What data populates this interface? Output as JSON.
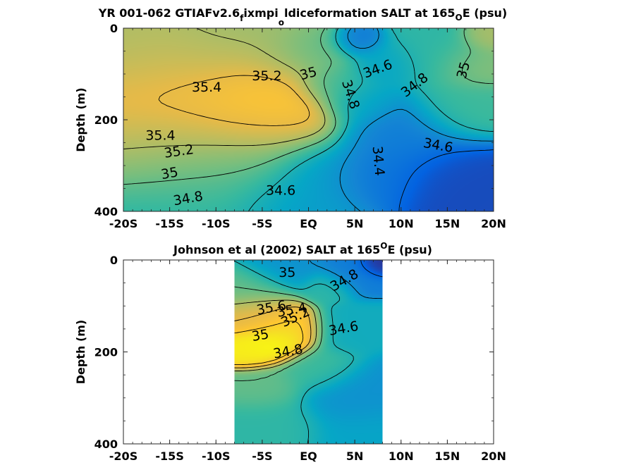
{
  "chart_data": [
    {
      "type": "heatmap",
      "title_parts": [
        "YR 001-062 GTIAFv2.6",
        "f",
        "ixmpi",
        "o",
        "ldiceformation SALT at 165",
        "O",
        "E (psu)"
      ],
      "ylabel": "Depth (m)",
      "xlabel": "",
      "x_ticks": [
        "-20S",
        "-15S",
        "-10S",
        "-5S",
        "EQ",
        "5N",
        "10N",
        "15N",
        "20N"
      ],
      "x_tick_values": [
        -20,
        -15,
        -10,
        -5,
        0,
        5,
        10,
        15,
        20
      ],
      "y_ticks": [
        "0",
        "200",
        "400"
      ],
      "y_tick_values": [
        0,
        200,
        400
      ],
      "xlim": [
        -20,
        20
      ],
      "ylim": [
        0,
        400
      ],
      "y_reversed": true,
      "colormap": "parula",
      "clim": [
        34.2,
        35.9
      ],
      "field_anchors": [
        {
          "x": -12,
          "y": 170,
          "v": 35.55,
          "s": 9
        },
        {
          "x": -6,
          "y": 165,
          "v": 35.6,
          "s": 6
        },
        {
          "x": -16,
          "y": 90,
          "v": 35.35,
          "s": 7
        },
        {
          "x": -16,
          "y": 260,
          "v": 35.2,
          "s": 7
        },
        {
          "x": -19,
          "y": 40,
          "v": 35.15,
          "s": 6
        },
        {
          "x": -8,
          "y": 300,
          "v": 35.0,
          "s": 8
        },
        {
          "x": -13,
          "y": 370,
          "v": 34.8,
          "s": 8
        },
        {
          "x": -10,
          "y": 40,
          "v": 35.1,
          "s": 6
        },
        {
          "x": -2,
          "y": 60,
          "v": 35.1,
          "s": 4
        },
        {
          "x": 1,
          "y": 50,
          "v": 34.95,
          "s": 3
        },
        {
          "x": 2.5,
          "y": 120,
          "v": 34.85,
          "s": 3
        },
        {
          "x": 5,
          "y": 30,
          "v": 34.45,
          "s": 2
        },
        {
          "x": 5.5,
          "y": 160,
          "v": 34.7,
          "s": 3
        },
        {
          "x": 8,
          "y": 80,
          "v": 34.7,
          "s": 3
        },
        {
          "x": 1,
          "y": 320,
          "v": 34.6,
          "s": 4
        },
        {
          "x": 7,
          "y": 320,
          "v": 34.45,
          "s": 4
        },
        {
          "x": 10,
          "y": 240,
          "v": 34.5,
          "s": 5
        },
        {
          "x": 16,
          "y": 330,
          "v": 34.3,
          "s": 5
        },
        {
          "x": 14,
          "y": 60,
          "v": 34.85,
          "s": 4
        },
        {
          "x": 18,
          "y": 80,
          "v": 35.1,
          "s": 3
        },
        {
          "x": 19.5,
          "y": 20,
          "v": 35.2,
          "s": 2
        },
        {
          "x": 17,
          "y": 180,
          "v": 34.9,
          "s": 4
        },
        {
          "x": -2,
          "y": 380,
          "v": 34.6,
          "s": 5
        }
      ],
      "contour_levels": [
        34.4,
        34.6,
        34.8,
        35,
        35.2,
        35.4
      ],
      "contour_labels": [
        {
          "text": "35.2",
          "x": -4.5,
          "y": 105,
          "angle": 0
        },
        {
          "text": "35",
          "x": 0,
          "y": 100,
          "angle": -15
        },
        {
          "text": "35.4",
          "x": -11,
          "y": 130,
          "angle": 0
        },
        {
          "text": "34.6",
          "x": 7.5,
          "y": 90,
          "angle": -20
        },
        {
          "text": "34.8",
          "x": 11.5,
          "y": 125,
          "angle": -38
        },
        {
          "text": "35",
          "x": 16.8,
          "y": 92,
          "angle": -75
        },
        {
          "text": "34.8",
          "x": 4.5,
          "y": 145,
          "angle": 72
        },
        {
          "text": "35.4",
          "x": -16,
          "y": 235,
          "angle": 0
        },
        {
          "text": "34.6",
          "x": 14,
          "y": 257,
          "angle": 10
        },
        {
          "text": "35.2",
          "x": -14,
          "y": 270,
          "angle": -8
        },
        {
          "text": "34.4",
          "x": 7.5,
          "y": 290,
          "angle": 85
        },
        {
          "text": "35",
          "x": -15,
          "y": 318,
          "angle": -10
        },
        {
          "text": "34.6",
          "x": -3,
          "y": 355,
          "angle": 0
        },
        {
          "text": "34.8",
          "x": -13,
          "y": 373,
          "angle": -10
        }
      ]
    },
    {
      "type": "heatmap",
      "title_parts": [
        "Johnson et al (2002) SALT at 165",
        "O",
        "E (psu)"
      ],
      "ylabel": "Depth (m)",
      "xlabel": "",
      "x_ticks": [
        "-20S",
        "-15S",
        "-10S",
        "-5S",
        "EQ",
        "5N",
        "10N",
        "15N",
        "20N"
      ],
      "x_tick_values": [
        -20,
        -15,
        -10,
        -5,
        0,
        5,
        10,
        15,
        20
      ],
      "y_ticks": [
        "0",
        "200",
        "400"
      ],
      "y_tick_values": [
        0,
        200,
        400
      ],
      "xlim": [
        -20,
        20
      ],
      "ylim": [
        0,
        400
      ],
      "y_reversed": true,
      "data_xrange": [
        -8,
        8
      ],
      "colormap": "parula",
      "clim": [
        34.2,
        35.9
      ],
      "field_anchors": [
        {
          "x": -4,
          "y": 180,
          "v": 35.9,
          "s": 2.5
        },
        {
          "x": -6.5,
          "y": 200,
          "v": 35.8,
          "s": 2
        },
        {
          "x": -2,
          "y": 150,
          "v": 35.7,
          "s": 2.5
        },
        {
          "x": -5,
          "y": 120,
          "v": 35.4,
          "s": 3
        },
        {
          "x": -6,
          "y": 60,
          "v": 35.0,
          "s": 3
        },
        {
          "x": -3,
          "y": 20,
          "v": 34.6,
          "s": 3
        },
        {
          "x": 2,
          "y": 60,
          "v": 34.85,
          "s": 2
        },
        {
          "x": 5,
          "y": 30,
          "v": 34.5,
          "s": 2.5
        },
        {
          "x": 7.5,
          "y": 10,
          "v": 34.2,
          "s": 1.5
        },
        {
          "x": 4,
          "y": 150,
          "v": 34.75,
          "s": 3
        },
        {
          "x": 1,
          "y": 240,
          "v": 34.9,
          "s": 3
        },
        {
          "x": -5,
          "y": 280,
          "v": 35.0,
          "s": 3
        },
        {
          "x": 5,
          "y": 300,
          "v": 34.6,
          "s": 4
        },
        {
          "x": -4,
          "y": 360,
          "v": 34.85,
          "s": 4
        },
        {
          "x": 6,
          "y": 380,
          "v": 34.7,
          "s": 4
        }
      ],
      "contour_levels": [
        34.4,
        34.6,
        34.8,
        35,
        35.2,
        35.4,
        35.6
      ],
      "contour_labels": [
        {
          "text": "35",
          "x": -2.3,
          "y": 28,
          "angle": 0
        },
        {
          "text": "34.8",
          "x": 3.9,
          "y": 45,
          "angle": -30
        },
        {
          "text": "35.6",
          "x": -4,
          "y": 105,
          "angle": -10
        },
        {
          "text": "35.4",
          "x": -1.8,
          "y": 110,
          "angle": -10
        },
        {
          "text": "35.2",
          "x": -1.4,
          "y": 125,
          "angle": -25
        },
        {
          "text": "34.6",
          "x": 3.8,
          "y": 150,
          "angle": -10
        },
        {
          "text": "35",
          "x": -5.2,
          "y": 165,
          "angle": -10
        },
        {
          "text": "34.8",
          "x": -2.2,
          "y": 200,
          "angle": -10
        }
      ]
    }
  ]
}
